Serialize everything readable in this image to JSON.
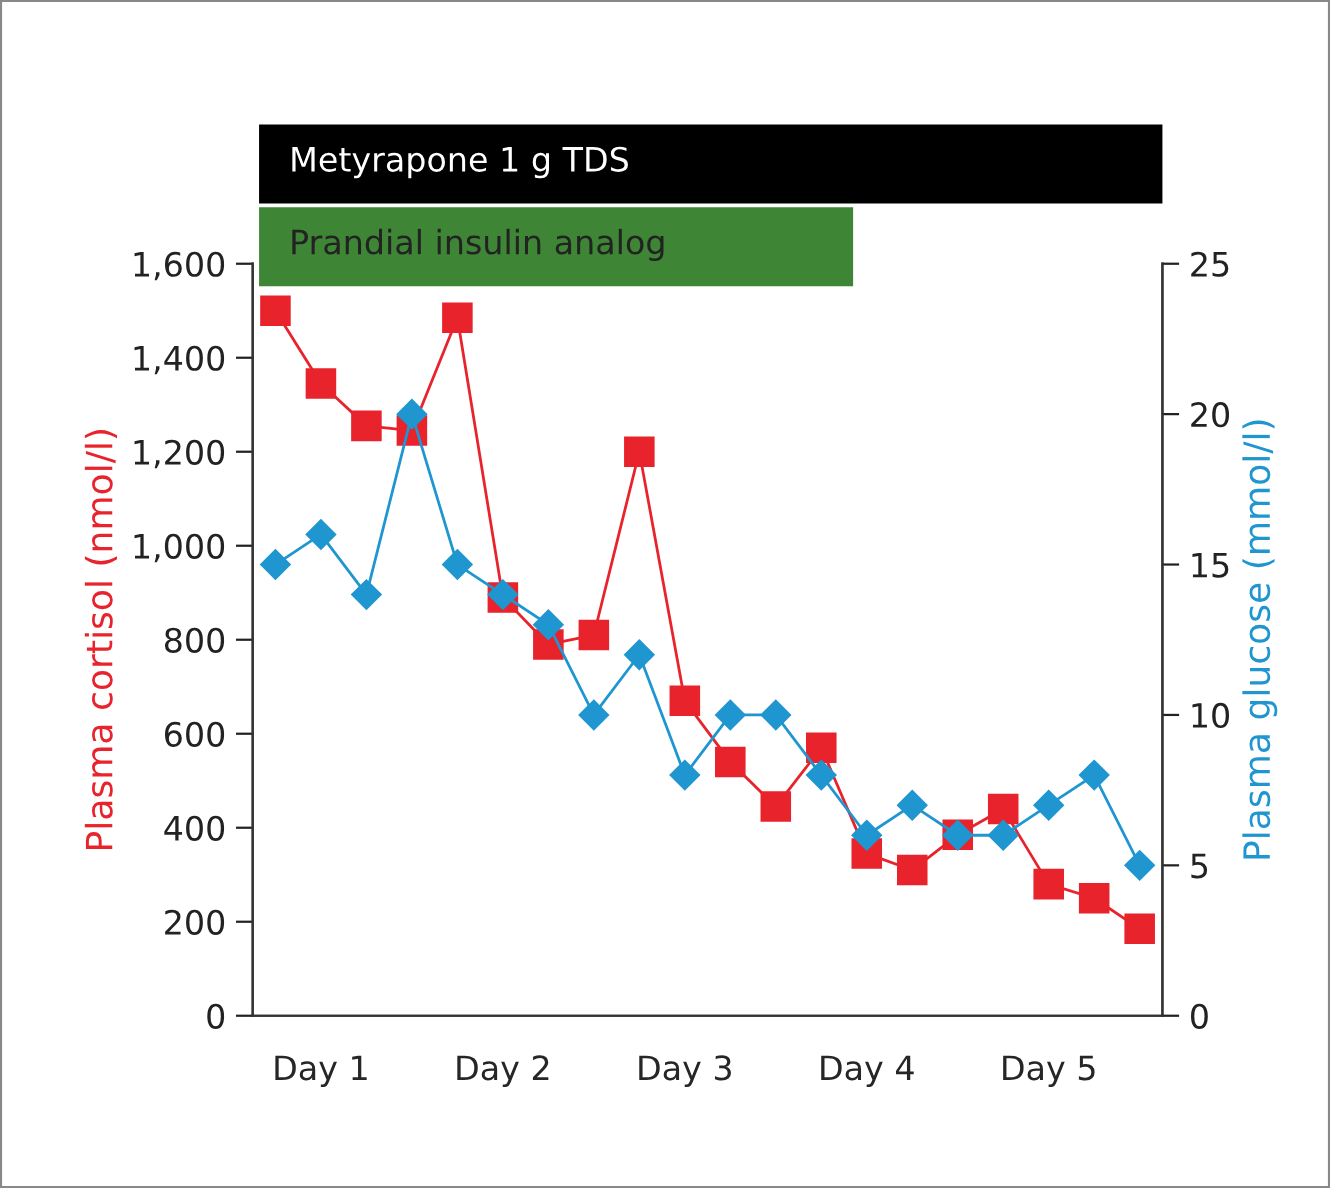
{
  "chart_data": {
    "type": "line",
    "categories": [
      null,
      "Day 1",
      null,
      null,
      null,
      "Day 2",
      null,
      null,
      null,
      "Day 3",
      null,
      null,
      null,
      "Day 4",
      null,
      null,
      null,
      "Day 5",
      null,
      null
    ],
    "series": [
      {
        "color": "#e8232b",
        "marker": "square",
        "values": [
          1500,
          1345,
          1255,
          1245,
          1485,
          890,
          790,
          810,
          1200,
          670,
          540,
          445,
          570,
          345,
          310,
          385,
          440,
          280,
          250,
          185
        ]
      },
      {
        "color": "#1f96d0",
        "marker": "diamond",
        "axis": "y2",
        "values": [
          15,
          16,
          14,
          20,
          15,
          14,
          13,
          10,
          12,
          8,
          10,
          10,
          8,
          6,
          7,
          6,
          6,
          7,
          8,
          5
        ]
      }
    ],
    "ylabel": "Plasma cortisol (nmol/l)",
    "y2label": "Plasma glucose (mmol/l)",
    "ylim": [
      0,
      1600
    ],
    "yticks": [
      0,
      {
        "value": 200,
        "label": "200"
      },
      {
        "value": 400,
        "label": "400"
      },
      {
        "value": 600,
        "label": "600"
      },
      {
        "value": 800,
        "label": "800"
      },
      {
        "value": 1000,
        "label": "1,000"
      },
      {
        "value": 1200,
        "label": "1,200"
      },
      {
        "value": 1400,
        "label": "1,400"
      },
      {
        "value": 1600,
        "label": "1,600"
      }
    ],
    "y2lim": [
      0,
      25
    ],
    "y2ticks": [
      0,
      5,
      10,
      15,
      20,
      25
    ],
    "annotations": [
      "Metyrapone 1 g TDS",
      "Prandial insulin analog"
    ],
    "line_style": "solid",
    "grid": false,
    "legend": false
  }
}
